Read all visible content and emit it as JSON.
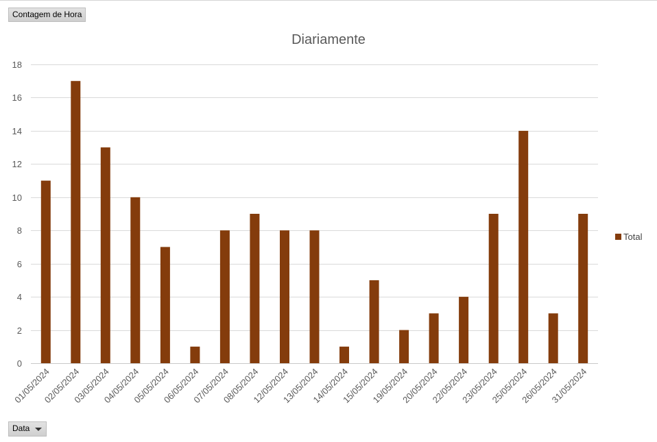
{
  "pivot": {
    "value_field_label": "Contagem de Hora",
    "axis_field_label": "Data"
  },
  "chart_data": {
    "type": "bar",
    "title": "Diariamente",
    "xlabel": "",
    "ylabel": "",
    "ylim": [
      0,
      18
    ],
    "yticks": [
      0,
      2,
      4,
      6,
      8,
      10,
      12,
      14,
      16,
      18
    ],
    "grid": true,
    "legend_position": "right",
    "categories": [
      "01/05/2024",
      "02/05/2024",
      "03/05/2024",
      "04/05/2024",
      "05/05/2024",
      "06/05/2024",
      "07/05/2024",
      "08/05/2024",
      "12/05/2024",
      "13/05/2024",
      "14/05/2024",
      "15/05/2024",
      "19/05/2024",
      "20/05/2024",
      "22/05/2024",
      "23/05/2024",
      "25/05/2024",
      "26/05/2024",
      "31/05/2024"
    ],
    "series": [
      {
        "name": "Total",
        "color": "#843c0c",
        "values": [
          11,
          17,
          13,
          10,
          7,
          1,
          8,
          9,
          8,
          8,
          1,
          5,
          2,
          3,
          4,
          9,
          14,
          3,
          9
        ]
      }
    ]
  }
}
